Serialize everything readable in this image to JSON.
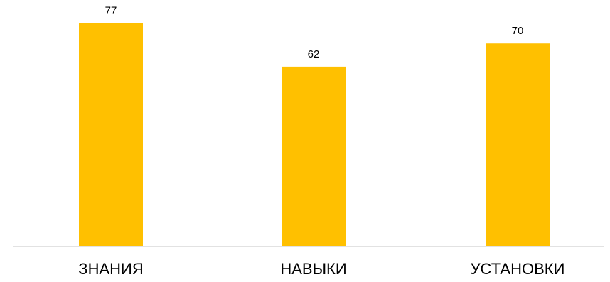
{
  "chart_data": {
    "type": "bar",
    "title": "",
    "xlabel": "",
    "ylabel": "",
    "categories": [
      "ЗНАНИЯ",
      "НАВЫКИ",
      "УСТАНОВКИ"
    ],
    "values": [
      77,
      62,
      70
    ],
    "data_labels": [
      "77",
      "62",
      "70"
    ],
    "ylim": [
      0,
      85
    ],
    "grid": false,
    "legend": "none",
    "colors": {
      "bar": "#FFC000",
      "axis": "#d9d9d9",
      "text": "#000000"
    }
  }
}
